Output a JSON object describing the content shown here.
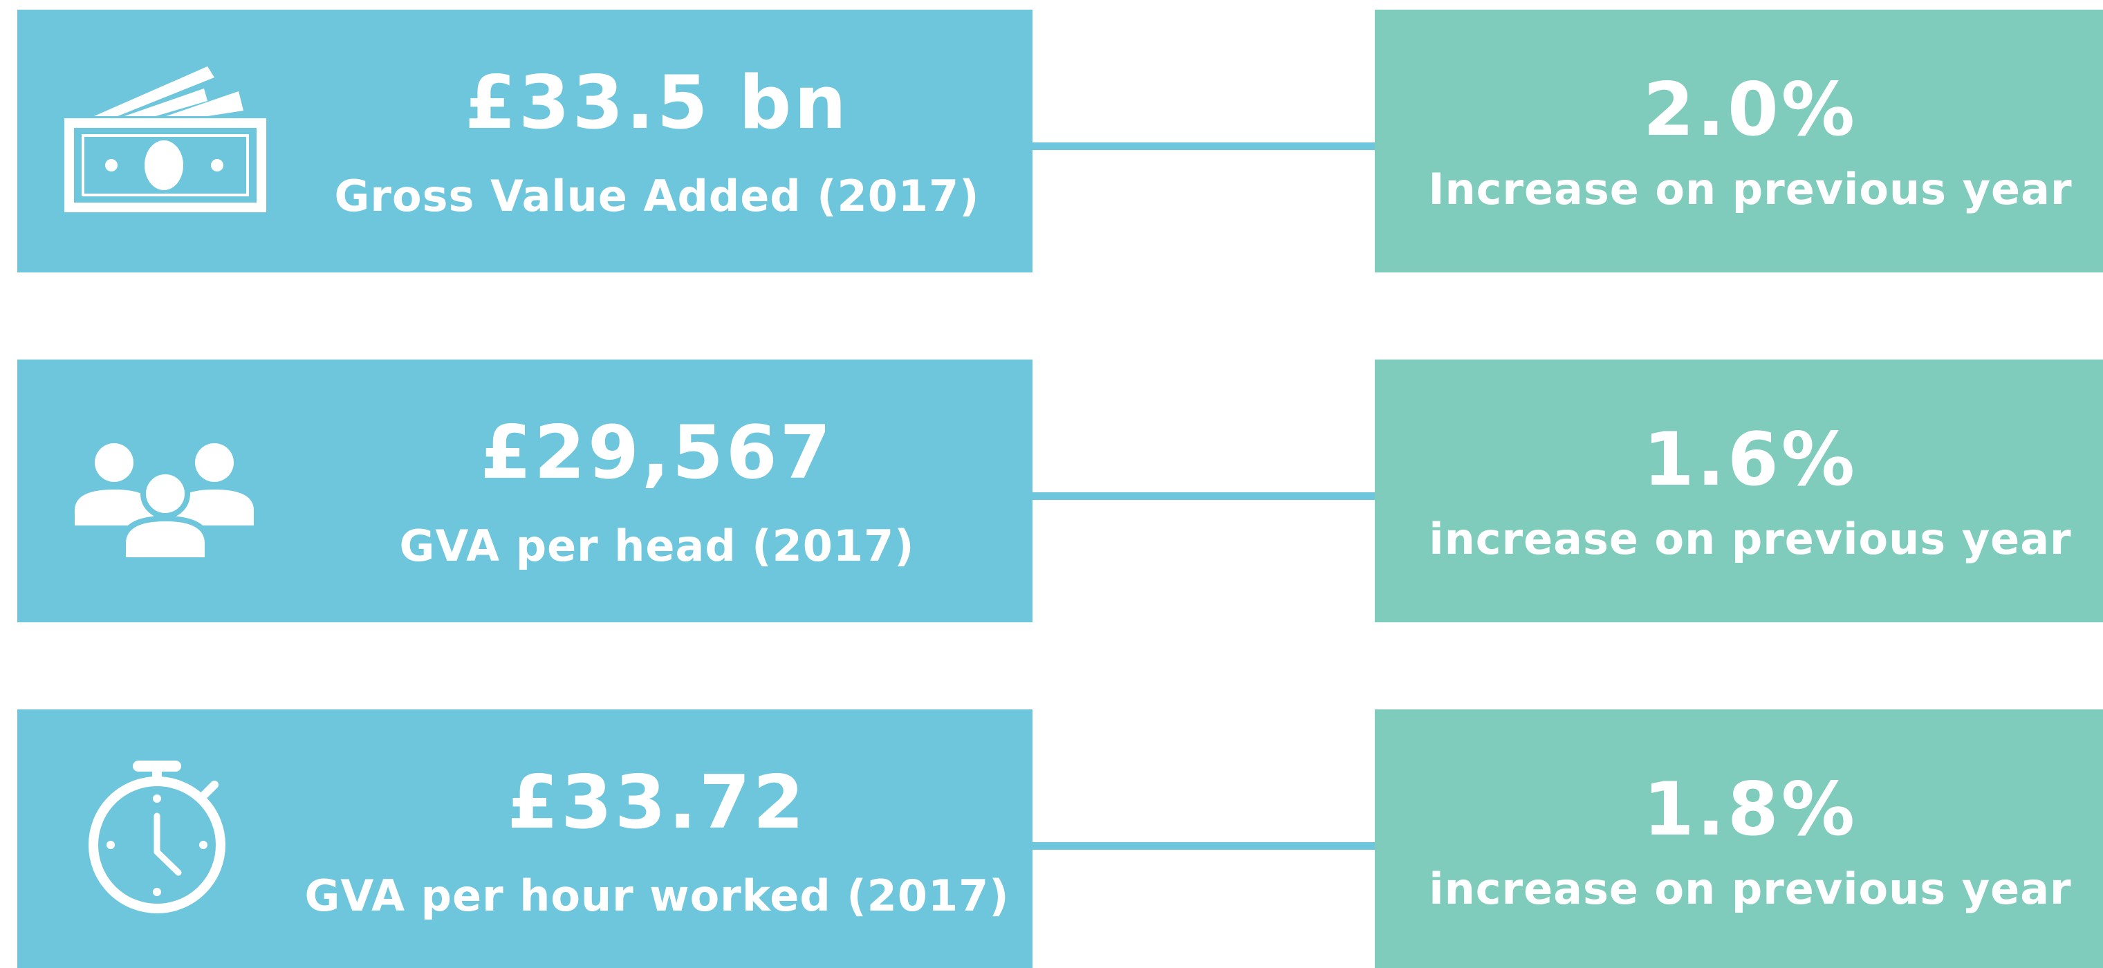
{
  "rows": [
    {
      "value": "£33.5 bn",
      "label": "Gross Value Added (2017)",
      "change": "2.0%",
      "change_label": "Increase on previous year"
    },
    {
      "value": "£29,567",
      "label": "GVA per head (2017)",
      "change": "1.6%",
      "change_label": "increase on previous year"
    },
    {
      "value": "£33.72",
      "label": "GVA per hour worked (2017)",
      "change": "1.8%",
      "change_label": "increase on previous year"
    }
  ]
}
